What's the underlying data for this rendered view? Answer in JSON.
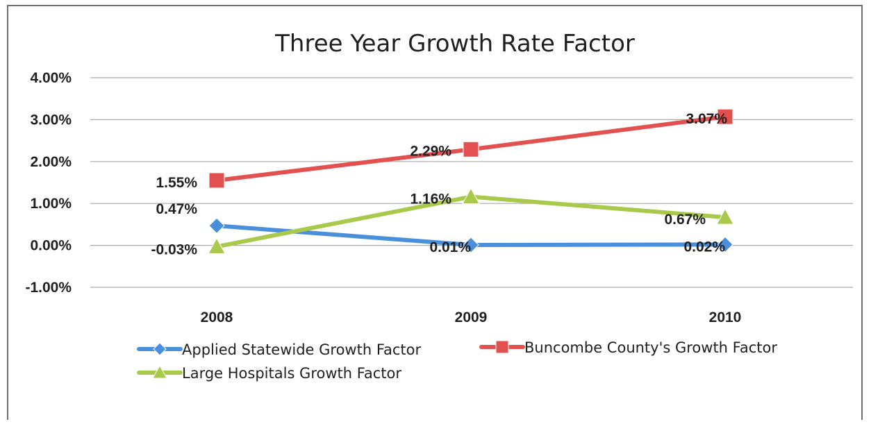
{
  "chart_data": {
    "type": "line",
    "title": "Three Year Growth Rate Factor",
    "categories": [
      "2008",
      "2009",
      "2010"
    ],
    "y_ticks": [
      "4.00%",
      "3.00%",
      "2.00%",
      "1.00%",
      "0.00%",
      "-1.00%"
    ],
    "ylim": [
      -1.0,
      4.0
    ],
    "grid": true,
    "legend_position": "bottom",
    "series": [
      {
        "name": "Applied Statewide Growth Factor",
        "values": [
          0.47,
          0.01,
          0.02
        ],
        "labels": [
          "0.47%",
          "0.01%",
          "0.02%"
        ],
        "color": "#4a8fdc",
        "marker": "diamond"
      },
      {
        "name": "Buncombe County's Growth Factor",
        "values": [
          1.55,
          2.29,
          3.07
        ],
        "labels": [
          "1.55%",
          "2.29%",
          "3.07%"
        ],
        "color": "#e2504f",
        "marker": "square"
      },
      {
        "name": "Large Hospitals Growth Factor",
        "values": [
          -0.03,
          1.16,
          0.67
        ],
        "labels": [
          "-0.03%",
          "1.16%",
          "0.67%"
        ],
        "color": "#a8c94a",
        "marker": "triangle"
      }
    ]
  }
}
